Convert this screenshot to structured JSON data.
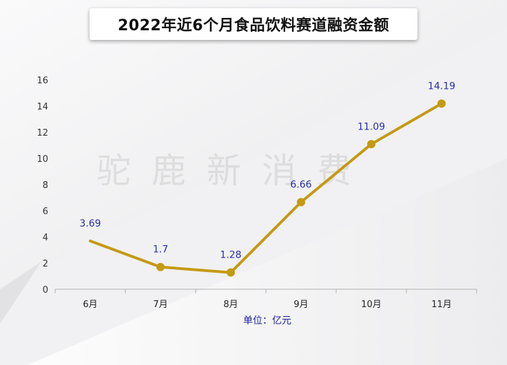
{
  "chart_data": {
    "type": "line",
    "title": "2022年近6个月食品饮料赛道融资金额",
    "categories": [
      "6月",
      "7月",
      "8月",
      "9月",
      "10月",
      "11月"
    ],
    "values": [
      3.69,
      1.7,
      1.28,
      6.66,
      11.09,
      14.19
    ],
    "data_labels": [
      "3.69",
      "1.7",
      "1.28",
      "6.66",
      "11.09",
      "14.19"
    ],
    "y_ticks": [
      "0",
      "2",
      "4",
      "6",
      "8",
      "10",
      "12",
      "14",
      "16"
    ],
    "ylim": [
      0,
      16
    ],
    "unit_label": "单位：亿元",
    "watermark": "驼鹿新消费",
    "grid": false,
    "colors": {
      "line": "#c49a12",
      "label": "#2b2ba8",
      "axis": "#b0b0b0"
    }
  }
}
